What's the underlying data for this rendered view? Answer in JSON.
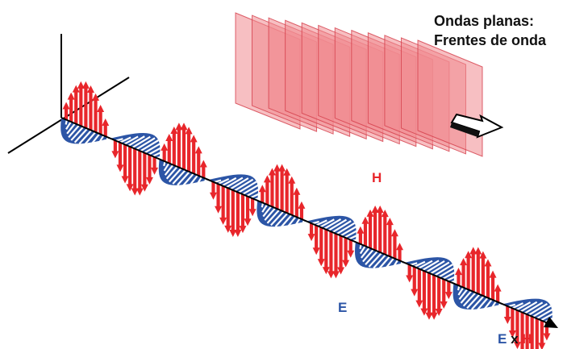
{
  "title": {
    "line1": "Ondas planas:",
    "line2": "Frentes de onda"
  },
  "labels": {
    "h": "H",
    "e": "E",
    "exh_e": "E",
    "exh_x": "x",
    "exh_h": "H"
  },
  "colors": {
    "h_field": "#e8262b",
    "e_field": "#2c55a6",
    "text": "#111111",
    "plane_fill": "#f08a90",
    "plane_stroke": "#d43c48"
  },
  "wave": {
    "cycles": 5,
    "h_arrows_per_lobe": 9
  },
  "planes": {
    "count": 12
  }
}
